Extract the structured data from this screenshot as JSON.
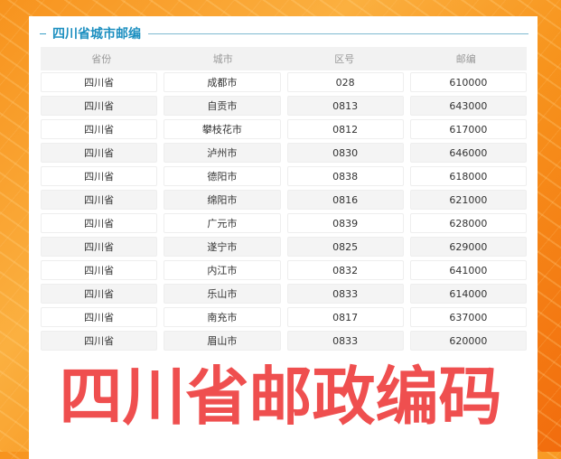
{
  "title": "四川省城市邮编",
  "overlay_text": "四川省邮政编码",
  "columns": [
    "省份",
    "城市",
    "区号",
    "邮编"
  ],
  "rows": [
    [
      "四川省",
      "成都市",
      "028",
      "610000"
    ],
    [
      "四川省",
      "自贡市",
      "0813",
      "643000"
    ],
    [
      "四川省",
      "攀枝花市",
      "0812",
      "617000"
    ],
    [
      "四川省",
      "泸州市",
      "0830",
      "646000"
    ],
    [
      "四川省",
      "德阳市",
      "0838",
      "618000"
    ],
    [
      "四川省",
      "绵阳市",
      "0816",
      "621000"
    ],
    [
      "四川省",
      "广元市",
      "0839",
      "628000"
    ],
    [
      "四川省",
      "遂宁市",
      "0825",
      "629000"
    ],
    [
      "四川省",
      "内江市",
      "0832",
      "641000"
    ],
    [
      "四川省",
      "乐山市",
      "0833",
      "614000"
    ],
    [
      "四川省",
      "南充市",
      "0817",
      "637000"
    ],
    [
      "四川省",
      "眉山市",
      "0833",
      "620000"
    ]
  ],
  "colors": {
    "accent": "#1c8fc0",
    "overlay": "#ef4f4f",
    "background": "#f7941d"
  }
}
